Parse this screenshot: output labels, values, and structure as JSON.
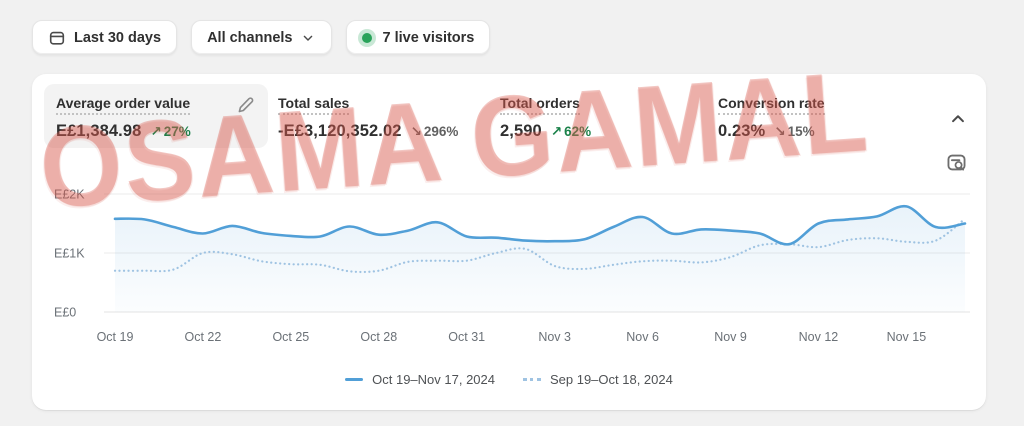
{
  "page": {
    "background": "#f1f1f1",
    "card_background": "#ffffff"
  },
  "toolbar": {
    "date_range_label": "Last 30 days",
    "channels_label": "All channels",
    "live_visitors_label": "7 live visitors",
    "live_visitors_count": 7,
    "live_dot_color": "#29a35a"
  },
  "watermark": {
    "text": "OSAMA GAMAL",
    "color": "#d8584d"
  },
  "metrics": [
    {
      "title": "Average order value",
      "value": "E£1,384.98",
      "arrow": "↗",
      "change": "27%",
      "trend": "up",
      "selected": true,
      "editable": true
    },
    {
      "title": "Total sales",
      "value": "-E£3,120,352.02",
      "arrow": "↘",
      "change": "296%",
      "trend": "down",
      "selected": false,
      "editable": false
    },
    {
      "title": "Total orders",
      "value": "2,590",
      "arrow": "↗",
      "change": "62%",
      "trend": "up",
      "selected": false,
      "editable": false
    },
    {
      "title": "Conversion rate",
      "value": "0.23%",
      "arrow": "↘",
      "change": "15%",
      "trend": "down",
      "selected": false,
      "editable": false
    }
  ],
  "colors": {
    "trend_up": "#1a8149",
    "trend_down": "#616161",
    "axis_text": "#6b7177",
    "gridline": "#ebebeb"
  },
  "chart_data": {
    "type": "line",
    "metric": "Average order value",
    "unit": "E£",
    "grid": "horizontal",
    "legend_position": "bottom",
    "ylim": [
      0,
      2200
    ],
    "y_ticks": [
      {
        "label": "E£0",
        "value": 0
      },
      {
        "label": "E£1K",
        "value": 1000
      },
      {
        "label": "E£2K",
        "value": 2000
      }
    ],
    "x_tick_labels": [
      "Oct 19",
      "Oct 22",
      "Oct 25",
      "Oct 28",
      "Oct 31",
      "Nov 3",
      "Nov 6",
      "Nov 9",
      "Nov 12",
      "Nov 15"
    ],
    "x_tick_step": 3,
    "series": [
      {
        "name": "Oct 19–Nov 17, 2024",
        "style": "solid",
        "color": "#519fd7",
        "values": [
          1580,
          1570,
          1440,
          1330,
          1460,
          1340,
          1290,
          1280,
          1450,
          1310,
          1380,
          1520,
          1280,
          1260,
          1210,
          1200,
          1230,
          1440,
          1610,
          1330,
          1400,
          1380,
          1330,
          1150,
          1500,
          1570,
          1620,
          1790,
          1440,
          1500
        ]
      },
      {
        "name": "Sep 19–Oct 18, 2024",
        "style": "dotted",
        "color": "#9fc3e2",
        "values": [
          700,
          700,
          720,
          1000,
          980,
          860,
          810,
          800,
          690,
          700,
          850,
          870,
          870,
          1000,
          1070,
          780,
          730,
          800,
          860,
          870,
          840,
          930,
          1130,
          1150,
          1100,
          1220,
          1250,
          1190,
          1210,
          1580
        ]
      }
    ]
  }
}
